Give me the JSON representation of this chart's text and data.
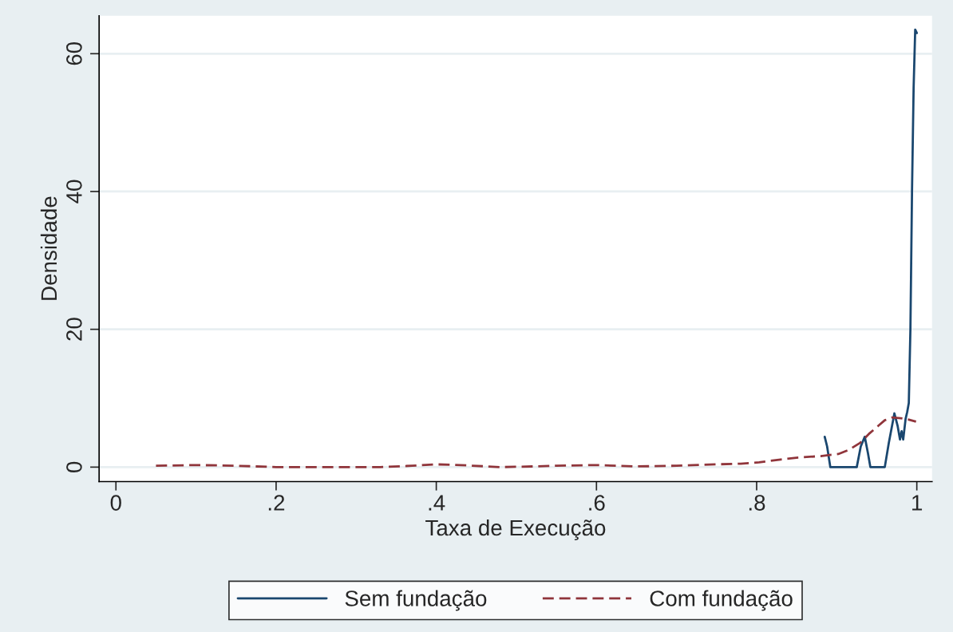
{
  "chart_data": {
    "type": "line",
    "xlabel": "Taxa de Execução",
    "ylabel": "Densidade",
    "xlim": [
      -0.021,
      1.019
    ],
    "ylim": [
      -2.1,
      65.5
    ],
    "xticks": [
      0,
      {
        "value": 0.2,
        "label": ".2"
      },
      {
        "value": 0.4,
        "label": ".4"
      },
      {
        "value": 0.6,
        "label": ".6"
      },
      {
        "value": 0.8,
        "label": ".8"
      },
      1
    ],
    "yticks": [
      0,
      20,
      40,
      60
    ],
    "grid": "y",
    "legend": "bottom",
    "series": [
      {
        "name": "Sem fundação",
        "color": "#1a476f",
        "line_style": "solid",
        "x": [
          0.885,
          0.888,
          0.892,
          0.925,
          0.93,
          0.935,
          0.939,
          0.942,
          0.96,
          0.965,
          0.972,
          0.976,
          0.979,
          0.981,
          0.983,
          0.986,
          0.988,
          0.99,
          0.992,
          0.994,
          0.996,
          0.998,
          1.0
        ],
        "values": [
          4.4,
          3.0,
          0,
          0,
          3.0,
          4.4,
          2.0,
          0,
          0,
          3.5,
          7.8,
          6.0,
          4.0,
          5.2,
          4.0,
          7.0,
          8.0,
          9.3,
          20,
          40,
          55,
          63.5,
          63
        ]
      },
      {
        "name": "Com fundação",
        "color": "#90353b",
        "line_style": "dashed",
        "x": [
          0.05,
          0.1,
          0.15,
          0.2,
          0.25,
          0.3,
          0.33,
          0.37,
          0.4,
          0.43,
          0.48,
          0.52,
          0.55,
          0.6,
          0.65,
          0.7,
          0.75,
          0.78,
          0.803,
          0.83,
          0.852,
          0.88,
          0.902,
          0.915,
          0.929,
          0.94,
          0.952,
          0.96,
          0.969,
          0.98,
          0.99,
          0.999
        ],
        "values": [
          0.2,
          0.3,
          0.2,
          0,
          0,
          0,
          0,
          0.2,
          0.4,
          0.3,
          0,
          0.1,
          0.2,
          0.3,
          0.1,
          0.2,
          0.4,
          0.5,
          0.7,
          1.1,
          1.4,
          1.6,
          1.9,
          2.5,
          3.5,
          4.8,
          6.0,
          6.8,
          7.2,
          7.1,
          6.9,
          6.6
        ]
      }
    ]
  }
}
